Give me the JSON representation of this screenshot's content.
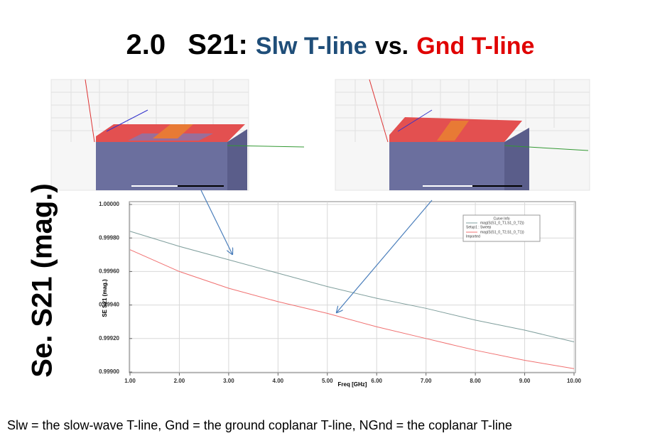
{
  "slide": {
    "title": {
      "number": "2.0",
      "metric": "S21:",
      "first": "Slw T-line",
      "joiner": "vs.",
      "second": "Gnd T-line"
    },
    "side_label": "Se. S21 (mag.)",
    "footnote": "Slw  =  the  slow-wave T-line,  Gnd = the ground coplanar T-line,  NGnd =  the coplanar T-line"
  },
  "chart_data": {
    "type": "line",
    "x_label": "Freq [GHz]",
    "y_label": "SE S21 (mag.)",
    "legend_title": "Curve Info",
    "x": [
      1,
      2,
      3,
      4,
      5,
      6,
      7,
      8,
      9,
      10
    ],
    "series": [
      {
        "name": "mag(S(S1_0_T1,S1_0_T2))",
        "source": "Setup1 : Sweep",
        "color": "#7f9e9c",
        "values": [
          0.99984,
          0.99975,
          0.99967,
          0.99959,
          0.99951,
          0.99944,
          0.99938,
          0.99931,
          0.99925,
          0.99918
        ]
      },
      {
        "name": "mag(S(S1_0_T2,S1_0_T1))",
        "source": "Imported",
        "color": "#f07070",
        "values": [
          0.99973,
          0.9996,
          0.9995,
          0.99942,
          0.99935,
          0.99927,
          0.9992,
          0.99913,
          0.99907,
          0.99902
        ]
      }
    ],
    "xlim": [
      1,
      10
    ],
    "xticks": [
      {
        "value": 1,
        "label": "1.00"
      },
      {
        "value": 2,
        "label": "2.00"
      },
      {
        "value": 3,
        "label": "3.00"
      },
      {
        "value": 4,
        "label": "4.00"
      },
      {
        "value": 5,
        "label": "5.00"
      },
      {
        "value": 6,
        "label": "6.00"
      },
      {
        "value": 7,
        "label": "7.00"
      },
      {
        "value": 8,
        "label": "8.00"
      },
      {
        "value": 9,
        "label": "9.00"
      },
      {
        "value": 10,
        "label": "10.00"
      }
    ],
    "ylim": [
      0.999,
      1.0
    ],
    "yticks": [
      {
        "value": 0.999,
        "label": "0.99900"
      },
      {
        "value": 0.9992,
        "label": "0.99920"
      },
      {
        "value": 0.9994,
        "label": "0.99940"
      },
      {
        "value": 0.9996,
        "label": "0.99960"
      },
      {
        "value": 0.9998,
        "label": "0.99980"
      },
      {
        "value": 1.0,
        "label": "1.00000"
      }
    ],
    "grid": true
  }
}
